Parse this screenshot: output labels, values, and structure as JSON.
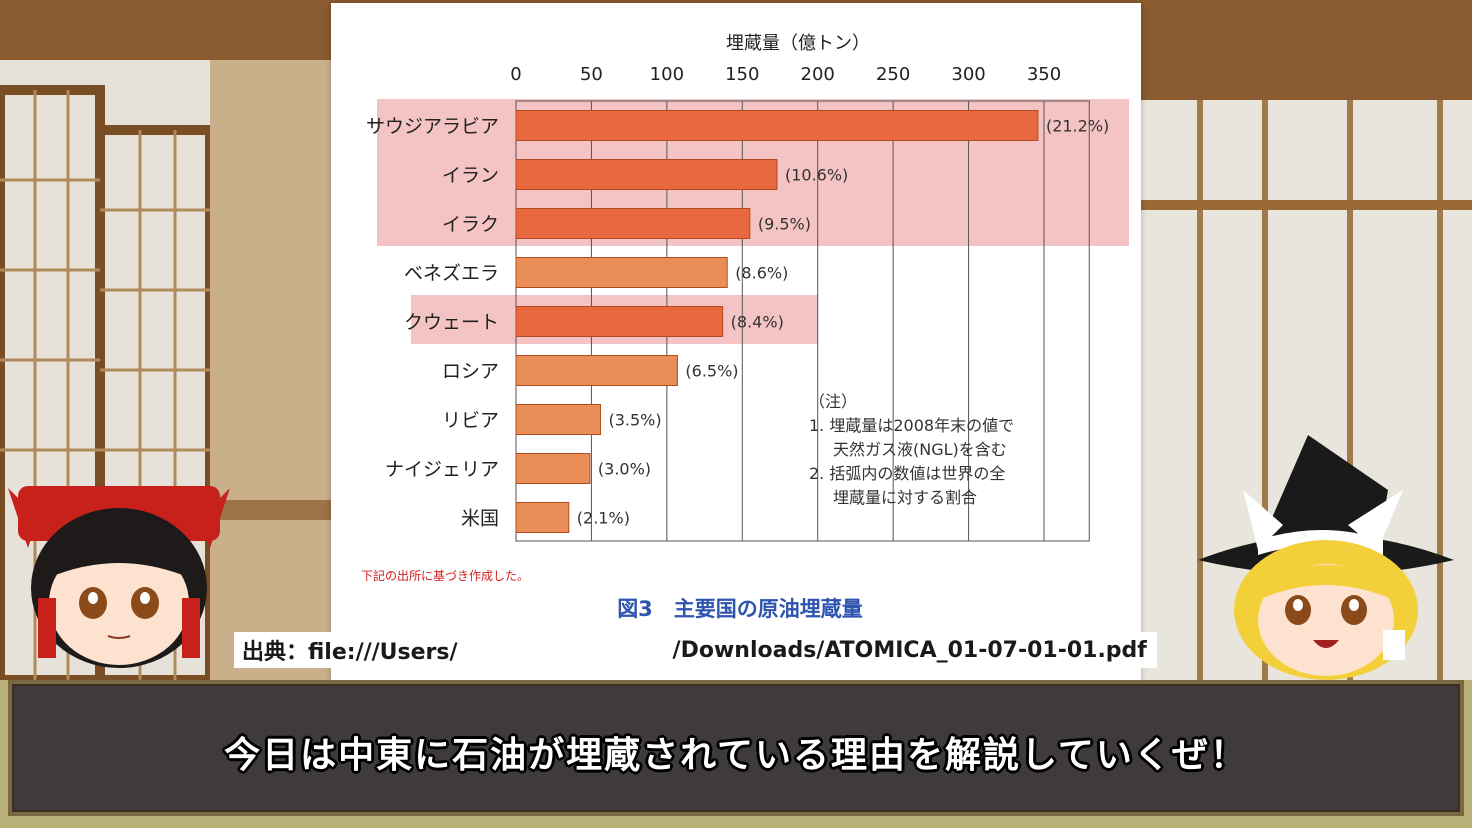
{
  "chart_data": {
    "type": "bar",
    "orientation": "horizontal",
    "axis_title": "埋蔵量（億トン）",
    "xlim": [
      0,
      350
    ],
    "ticks": [
      "0",
      "50",
      "100",
      "150",
      "200",
      "250",
      "300",
      "350"
    ],
    "categories": [
      "サウジアラビア",
      "イラン",
      "イラク",
      "ベネズエラ",
      "クウェート",
      "ロシア",
      "リビア",
      "ナイジェリア",
      "米国"
    ],
    "values": [
      346,
      173,
      155,
      140,
      137,
      107,
      56,
      49,
      35
    ],
    "data_labels": [
      "(21.2%)",
      "(10.6%)",
      "(9.5%)",
      "(8.6%)",
      "(8.4%)",
      "(6.5%)",
      "(3.5%)",
      "(3.0%)",
      "(2.1%)"
    ],
    "highlighted": [
      true,
      true,
      true,
      false,
      true,
      false,
      false,
      false,
      false
    ],
    "grid": true,
    "notes": [
      "（注）",
      "1. 埋蔵量は2008年末の値で",
      "天然ガス液(NGL)を含む",
      "2. 括弧内の数値は世界の全",
      "埋蔵量に対する割合"
    ],
    "source_note": "下記の出所に基づき作成した。",
    "caption": "図3　主要国の原油埋蔵量",
    "colors": {
      "highlight_bar": "#e8683f",
      "normal_bar": "#e98e57",
      "highlight_band": "#f4c3c3",
      "caption": "#2e55b0",
      "source_note": "#d42020"
    }
  },
  "overlay": {
    "source_prefix": "出典：file:///Users/",
    "source_suffix": "/Downloads/ATOMICA_01-07-01-01.pdf"
  },
  "subtitle": {
    "text": "今日は中東に石油が埋蔵されている理由を解説していくぜ！"
  },
  "characters": {
    "left_icon": "reimu-avatar-icon",
    "right_icon": "marisa-avatar-icon"
  }
}
